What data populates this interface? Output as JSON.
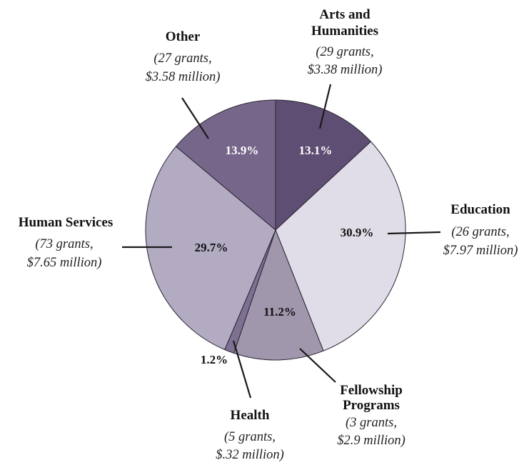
{
  "chart_data": {
    "type": "pie",
    "title": "",
    "slices": [
      {
        "label": "Arts and Humanities",
        "value": 13.1,
        "value_label": "13.1%",
        "grants": "(29 grants,",
        "amount": "$3.38 million)",
        "color": "#5f4e73"
      },
      {
        "label": "Education",
        "value": 30.9,
        "value_label": "30.9%",
        "grants": "(26 grants,",
        "amount": "$7.97 million)",
        "color": "#e1dde8"
      },
      {
        "label": "Fellowship Programs",
        "value": 11.2,
        "value_label": "11.2%",
        "grants": "(3 grants,",
        "amount": "$2.9 million)",
        "color": "#a097ad"
      },
      {
        "label": "Health",
        "value": 1.2,
        "value_label": "1.2%",
        "grants": "(5 grants,",
        "amount": "$.32 million)",
        "color": "#7d7090"
      },
      {
        "label": "Human Services",
        "value": 29.7,
        "value_label": "29.7%",
        "grants": "(73 grants,",
        "amount": "$7.65 million)",
        "color": "#b3abc2"
      },
      {
        "label": "Other",
        "value": 13.9,
        "value_label": "13.9%",
        "grants": "(27 grants,",
        "amount": "$3.58 million)",
        "color": "#76678a"
      }
    ]
  }
}
